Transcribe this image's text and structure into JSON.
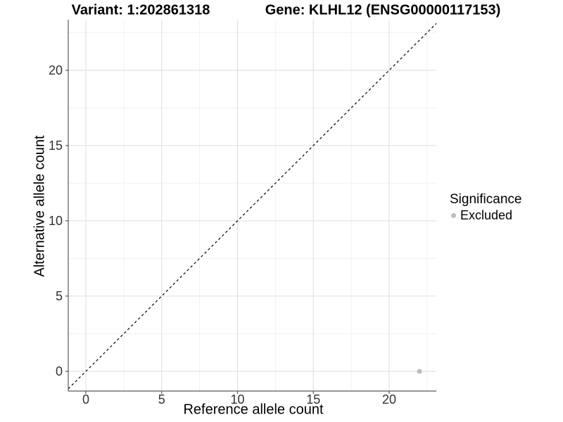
{
  "chart_data": {
    "type": "scatter",
    "title_left": "Variant: 1:202861318",
    "title_right": "Gene: KLHL12 (ENSG00000117153)",
    "xlabel": "Reference allele count",
    "ylabel": "Alternative allele count",
    "xlim": [
      -1.16,
      23.11
    ],
    "ylim": [
      -1.31,
      23.36
    ],
    "x_ticks": [
      0,
      5,
      10,
      15,
      20
    ],
    "y_ticks": [
      0,
      5,
      10,
      15,
      20
    ],
    "x_minor_ticks": [
      2.5,
      7.5,
      12.5,
      17.5,
      22.5
    ],
    "y_minor_ticks": [
      2.5,
      7.5,
      12.5,
      17.5,
      22.5
    ],
    "grid": {
      "major_color": "#e2e2e2",
      "minor_color": "#efefef",
      "background": "#ffffff"
    },
    "axis_color": "#595959",
    "tick_label_color": "#333333",
    "identity_line": {
      "style": "dashed",
      "color": "#000000"
    },
    "points": [
      {
        "x": 22,
        "y": 0,
        "significance": "Excluded",
        "color": "#bdbdbd",
        "radius": 3.5
      }
    ],
    "legend": {
      "title": "Significance",
      "position": "right",
      "items": [
        {
          "label": "Excluded",
          "color": "#bdbdbd"
        }
      ]
    }
  }
}
